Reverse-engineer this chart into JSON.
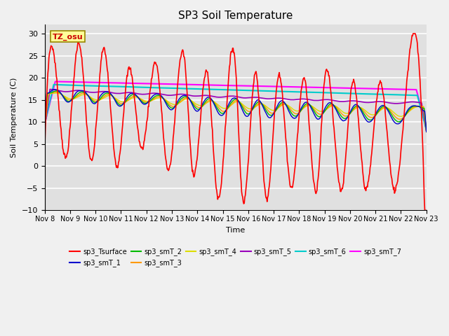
{
  "title": "SP3 Soil Temperature",
  "ylabel": "Soil Temperature (C)",
  "xlabel": "Time",
  "annotation": "TZ_osu",
  "ylim": [
    -10,
    32
  ],
  "yticks": [
    -10,
    -5,
    0,
    5,
    10,
    15,
    20,
    25,
    30
  ],
  "plot_bg": "#e0e0e0",
  "series_colors": {
    "sp3_Tsurface": "#ff0000",
    "sp3_smT_1": "#0000cc",
    "sp3_smT_2": "#00bb00",
    "sp3_smT_3": "#ff9900",
    "sp3_smT_4": "#dddd00",
    "sp3_smT_5": "#9900bb",
    "sp3_smT_6": "#00cccc",
    "sp3_smT_7": "#ff00ff"
  },
  "legend_order": [
    "sp3_Tsurface",
    "sp3_smT_1",
    "sp3_smT_2",
    "sp3_smT_3",
    "sp3_smT_4",
    "sp3_smT_5",
    "sp3_smT_6",
    "sp3_smT_7"
  ],
  "start_day": 8,
  "end_day": 23,
  "xtick_days": [
    8,
    9,
    10,
    11,
    12,
    13,
    14,
    15,
    16,
    17,
    18,
    19,
    20,
    21,
    22,
    23
  ]
}
